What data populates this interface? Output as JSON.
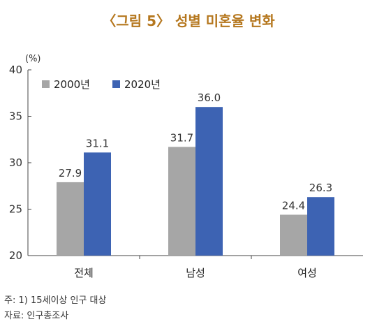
{
  "title": "〈그림 5〉 성별 미혼율 변화",
  "unit": "(%)",
  "notes": {
    "note": "주: 1) 15세이상 인구 대상",
    "source": "자료: 인구총조사"
  },
  "colors": {
    "series_2000": "#a6a6a6",
    "series_2020": "#3d63b3",
    "title": "#b5771e"
  },
  "chart_data": {
    "type": "bar",
    "title": "〈그림 5〉 성별 미혼율 변화",
    "ylabel": "(%)",
    "ylim": [
      20,
      40
    ],
    "yticks": [
      20,
      25,
      30,
      35,
      40
    ],
    "grid": false,
    "legend_position": "top-left",
    "categories": [
      "전체",
      "남성",
      "여성"
    ],
    "series": [
      {
        "name": "2000년",
        "values": [
          27.9,
          31.7,
          24.4
        ],
        "labels": [
          "27.9",
          "31.7",
          "24.4"
        ]
      },
      {
        "name": "2020년",
        "values": [
          31.1,
          36.0,
          26.3
        ],
        "labels": [
          "31.1",
          "36.0",
          "26.3"
        ]
      }
    ]
  }
}
